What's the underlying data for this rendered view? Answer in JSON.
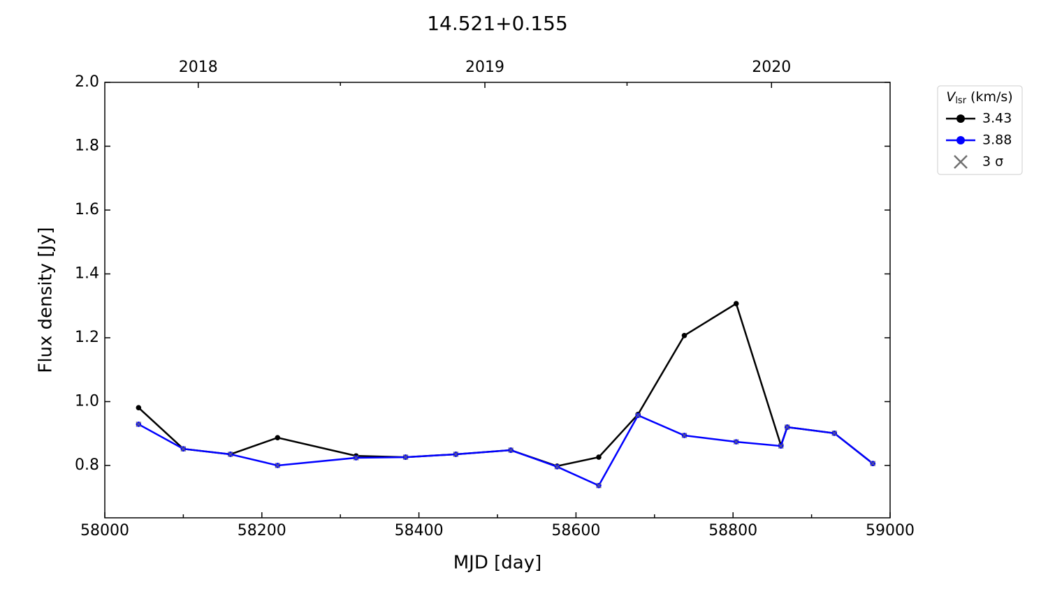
{
  "chart_data": {
    "type": "line",
    "title": "14.521+0.155",
    "x_label": "MJD [day]",
    "y_label": "Flux density [Jy]",
    "xlim": [
      58000,
      59000
    ],
    "xticks": [
      58000,
      58200,
      58400,
      58600,
      58800,
      59000
    ],
    "xminor_ticks": [
      58100,
      58300,
      58500,
      58700,
      58900
    ],
    "x2ticks": [
      {
        "value": 58119,
        "label": "2018"
      },
      {
        "value": 58484,
        "label": "2019"
      },
      {
        "value": 58849,
        "label": "2020"
      }
    ],
    "x2minor_ticks": [
      58300,
      58665
    ],
    "ylim": [
      0.636,
      2.0
    ],
    "yticks": [
      0.8,
      {
        "value": 1.0,
        "label": "1.0"
      },
      1.2,
      1.4,
      1.6,
      1.8,
      {
        "value": 2.0,
        "label": "2.0"
      }
    ],
    "legend_title": {
      "symbol": "V",
      "subscript": "lsr",
      "unit": "(km/s)"
    },
    "legend_position": "outside-upper-right",
    "x": [
      58043,
      58100,
      58160,
      58220,
      58320,
      58383,
      58447,
      58517,
      58576,
      58629,
      58679,
      58738,
      58804,
      58861,
      58869,
      58929,
      58978
    ],
    "series": [
      {
        "name": "3.43",
        "color": "#000000",
        "marker": "circle",
        "line": true,
        "values": [
          0.981,
          0.852,
          0.835,
          0.887,
          0.83,
          0.826,
          0.835,
          0.848,
          0.798,
          0.826,
          0.96,
          1.207,
          1.307,
          0.863,
          0.92,
          0.901,
          0.806
        ]
      },
      {
        "name": "3.88",
        "color": "#0000ff",
        "marker": "circle",
        "line": true,
        "values": [
          0.929,
          0.852,
          0.835,
          0.8,
          0.824,
          0.826,
          0.835,
          0.848,
          0.796,
          0.737,
          0.957,
          0.894,
          0.874,
          0.861,
          0.92,
          0.901,
          0.806
        ]
      },
      {
        "name": "3 σ",
        "color": "#707070",
        "marker": "x",
        "line": false,
        "values": [
          0.929,
          0.852,
          0.835,
          0.8,
          0.824,
          0.826,
          0.835,
          0.848,
          0.796,
          0.737,
          0.957,
          0.894,
          0.874,
          0.861,
          0.92,
          0.901,
          0.806
        ]
      }
    ]
  }
}
